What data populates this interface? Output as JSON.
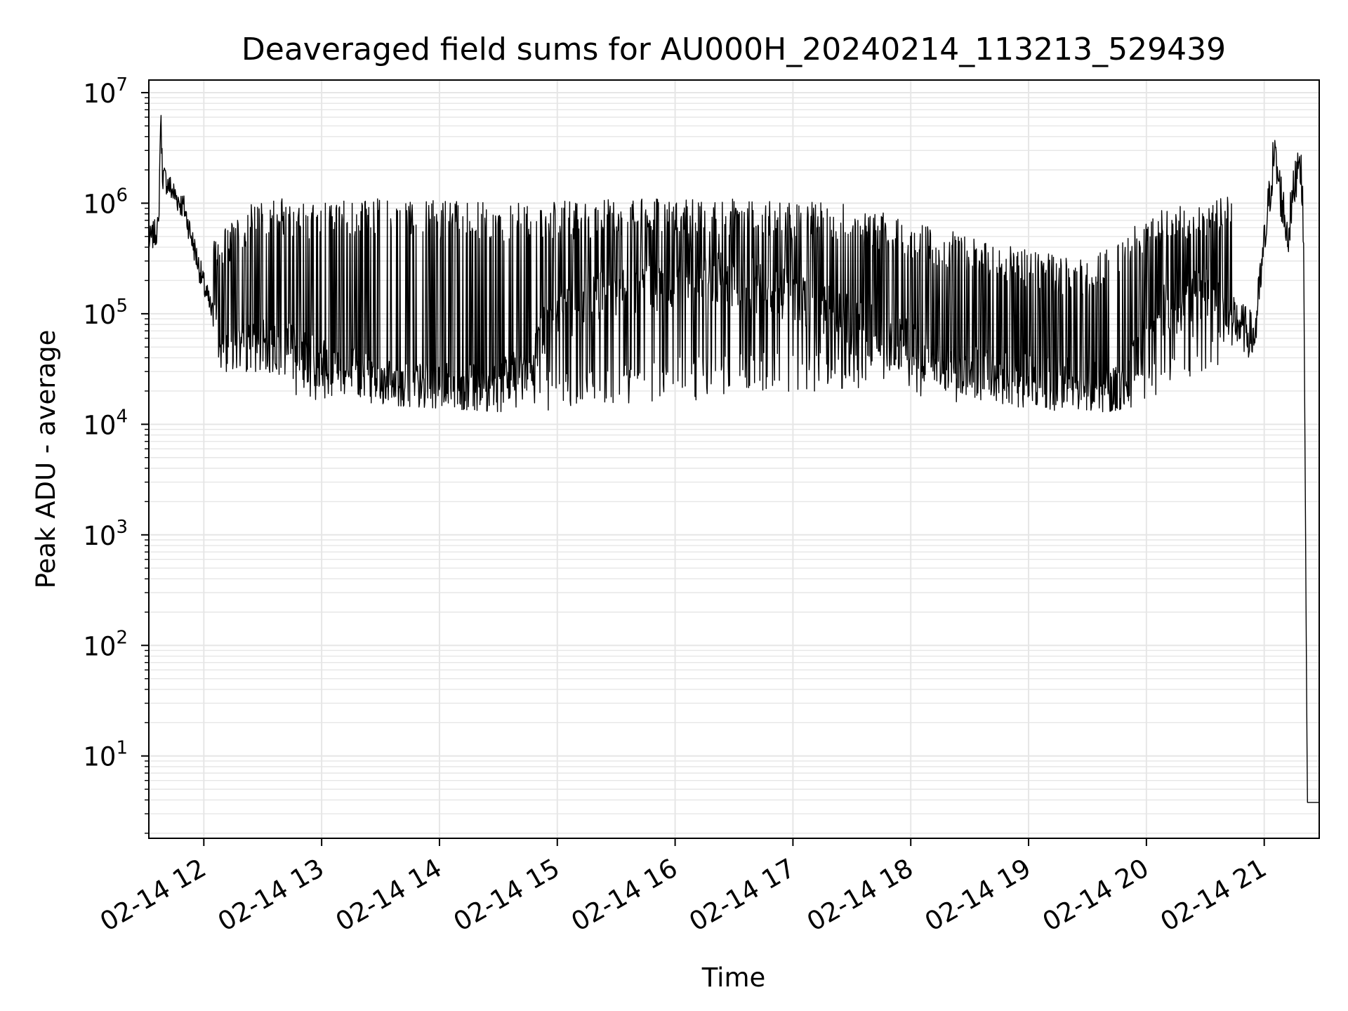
{
  "chart_data": {
    "type": "line",
    "title": "Deaveraged field sums for AU000H_20240214_113213_529439",
    "xlabel": "Time",
    "ylabel": "Peak ADU - average",
    "xlim": [
      "2024-02-14 11:32",
      "2024-02-14 21:28"
    ],
    "ylim": [
      1.8,
      13000000
    ],
    "yscale": "log",
    "grid": true,
    "grid_color": "#e6e6e6",
    "line_color": "#000000",
    "x_ticks": [
      "02-14 12",
      "02-14 13",
      "02-14 14",
      "02-14 15",
      "02-14 16",
      "02-14 17",
      "02-14 18",
      "02-14 19",
      "02-14 20",
      "02-14 21"
    ],
    "y_ticks": [
      {
        "base": "10",
        "exp": "1",
        "value": 10
      },
      {
        "base": "10",
        "exp": "2",
        "value": 100
      },
      {
        "base": "10",
        "exp": "3",
        "value": 1000
      },
      {
        "base": "10",
        "exp": "4",
        "value": 10000
      },
      {
        "base": "10",
        "exp": "5",
        "value": 100000
      },
      {
        "base": "10",
        "exp": "6",
        "value": 1000000
      },
      {
        "base": "10",
        "exp": "7",
        "value": 10000000
      }
    ],
    "series": [
      {
        "values": [
          {
            "x": "2024-02-14 11:32",
            "y": 450000
          },
          {
            "x": "2024-02-14 11:37",
            "y": 600000
          },
          {
            "x": "2024-02-14 11:38",
            "y": 6500000
          },
          {
            "x": "2024-02-14 11:39",
            "y": 1800000
          },
          {
            "x": "2024-02-14 11:45",
            "y": 1200000
          },
          {
            "x": "2024-02-14 11:50",
            "y": 900000
          },
          {
            "x": "2024-02-14 11:55",
            "y": 400000
          },
          {
            "x": "2024-02-14 12:00",
            "y": 180000
          },
          {
            "x": "2024-02-14 12:05",
            "y": 90000
          },
          {
            "x": "2024-02-14 12:10",
            "y": 45000
          },
          {
            "x": "2024-02-14 12:30",
            "y": 50000
          },
          {
            "x": "2024-02-14 12:45",
            "y": 50000
          },
          {
            "x": "2024-02-14 13:00",
            "y": 35000
          },
          {
            "x": "2024-02-14 13:30",
            "y": 25000
          },
          {
            "x": "2024-02-14 14:00",
            "y": 20000
          },
          {
            "x": "2024-02-14 14:30",
            "y": 20000
          },
          {
            "x": "2024-02-14 15:00",
            "y": 100000
          },
          {
            "x": "2024-02-14 15:30",
            "y": 150000
          },
          {
            "x": "2024-02-14 16:00",
            "y": 200000
          },
          {
            "x": "2024-02-14 16:30",
            "y": 200000
          },
          {
            "x": "2024-02-14 17:00",
            "y": 150000
          },
          {
            "x": "2024-02-14 17:30",
            "y": 80000
          },
          {
            "x": "2024-02-14 18:00",
            "y": 50000
          },
          {
            "x": "2024-02-14 18:30",
            "y": 30000
          },
          {
            "x": "2024-02-14 19:00",
            "y": 25000
          },
          {
            "x": "2024-02-14 19:30",
            "y": 22000
          },
          {
            "x": "2024-02-14 19:50",
            "y": 20000
          },
          {
            "x": "2024-02-14 20:00",
            "y": 90000
          },
          {
            "x": "2024-02-14 20:30",
            "y": 150000
          },
          {
            "x": "2024-02-14 20:55",
            "y": 60000
          },
          {
            "x": "2024-02-14 21:05",
            "y": 2800000
          },
          {
            "x": "2024-02-14 21:12",
            "y": 500000
          },
          {
            "x": "2024-02-14 21:18",
            "y": 3200000
          },
          {
            "x": "2024-02-14 21:20",
            "y": 600000
          },
          {
            "x": "2024-02-14 21:21",
            "y": 1300
          },
          {
            "x": "2024-02-14 21:22",
            "y": 3.8
          },
          {
            "x": "2024-02-14 21:28",
            "y": 3.8
          }
        ],
        "noise_envelope": [
          {
            "x": "2024-02-14 12:05",
            "high": 500000,
            "low": 30000
          },
          {
            "x": "2024-02-14 12:30",
            "high": 1200000,
            "low": 30000
          },
          {
            "x": "2024-02-14 12:50",
            "high": 1000000,
            "low": 17000
          },
          {
            "x": "2024-02-14 13:30",
            "high": 1100000,
            "low": 15000
          },
          {
            "x": "2024-02-14 14:30",
            "high": 1000000,
            "low": 13000
          },
          {
            "x": "2024-02-14 15:30",
            "high": 1100000,
            "low": 14000
          },
          {
            "x": "2024-02-14 16:30",
            "high": 1100000,
            "low": 18000
          },
          {
            "x": "2024-02-14 17:30",
            "high": 1000000,
            "low": 20000
          },
          {
            "x": "2024-02-14 18:30",
            "high": 500000,
            "low": 15000
          },
          {
            "x": "2024-02-14 19:30",
            "high": 300000,
            "low": 12000
          },
          {
            "x": "2024-02-14 20:00",
            "high": 800000,
            "low": 15000
          },
          {
            "x": "2024-02-14 20:45",
            "high": 1200000,
            "low": 40000
          }
        ]
      }
    ]
  }
}
